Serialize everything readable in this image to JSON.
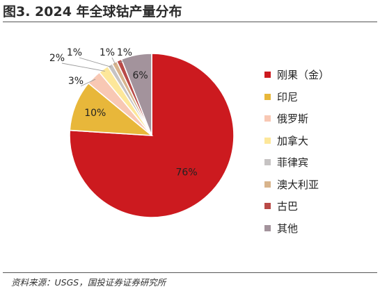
{
  "figure": {
    "title": "图3. 2024 年全球钴产量分布",
    "source": "资料来源：USGS，国投证券证券研究所"
  },
  "chart_data": {
    "type": "pie",
    "title": "图3. 2024 年全球钴产量分布",
    "legend_position": "right",
    "categories": [
      "刚果（金）",
      "印尼",
      "俄罗斯",
      "加拿大",
      "菲律宾",
      "澳大利亚",
      "古巴",
      "其他"
    ],
    "values": [
      76,
      10,
      3,
      2,
      1,
      1,
      1,
      6
    ],
    "labels": [
      "76%",
      "10%",
      "3%",
      "2%",
      "1%",
      "1%",
      "1%",
      "6%"
    ],
    "colors": [
      "#cc1a1f",
      "#e8b73a",
      "#f8c8b4",
      "#fde79a",
      "#c6c3c3",
      "#d8b48c",
      "#b94a47",
      "#a3939c"
    ]
  }
}
